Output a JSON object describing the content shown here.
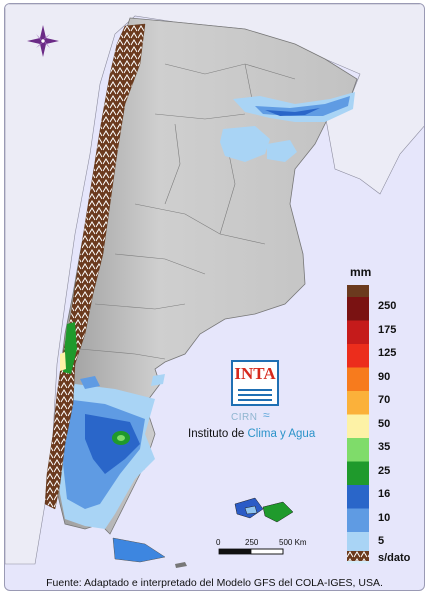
{
  "map": {
    "compass_icon": "compass-rose-icon"
  },
  "legend": {
    "unit": "mm",
    "items": [
      {
        "label": "250",
        "color": "#7a1212"
      },
      {
        "label": "175",
        "color": "#c51b1b"
      },
      {
        "label": "125",
        "color": "#ec2d1c"
      },
      {
        "label": "90",
        "color": "#f77b1d"
      },
      {
        "label": "70",
        "color": "#fbb13a"
      },
      {
        "label": "50",
        "color": "#fdf2a6"
      },
      {
        "label": "35",
        "color": "#7fdc6a"
      },
      {
        "label": "25",
        "color": "#1f9a2c"
      },
      {
        "label": "16",
        "color": "#2a66c9"
      },
      {
        "label": "10",
        "color": "#5f9be3"
      },
      {
        "label": "5",
        "color": "#a9d4f5"
      }
    ],
    "top_color": "#6b3a1e",
    "no_data": {
      "label": "s/dato",
      "color": "#7a4a2a"
    }
  },
  "scale_bar": {
    "ticks": [
      "0",
      "250",
      "500 Km"
    ]
  },
  "logo": {
    "brand": "INTA",
    "sub": "CIRN",
    "institute_prefix": "Instituto de ",
    "institute_accent": "Clima y Agua"
  },
  "footer": {
    "source": "Fuente: Adaptado e interpretado del Modelo GFS del COLA-IGES, USA."
  },
  "colors": {
    "frame_bg": "#e6e6fb",
    "land": "#c7c7c7",
    "nodata_brown": "#7a4a2a"
  }
}
